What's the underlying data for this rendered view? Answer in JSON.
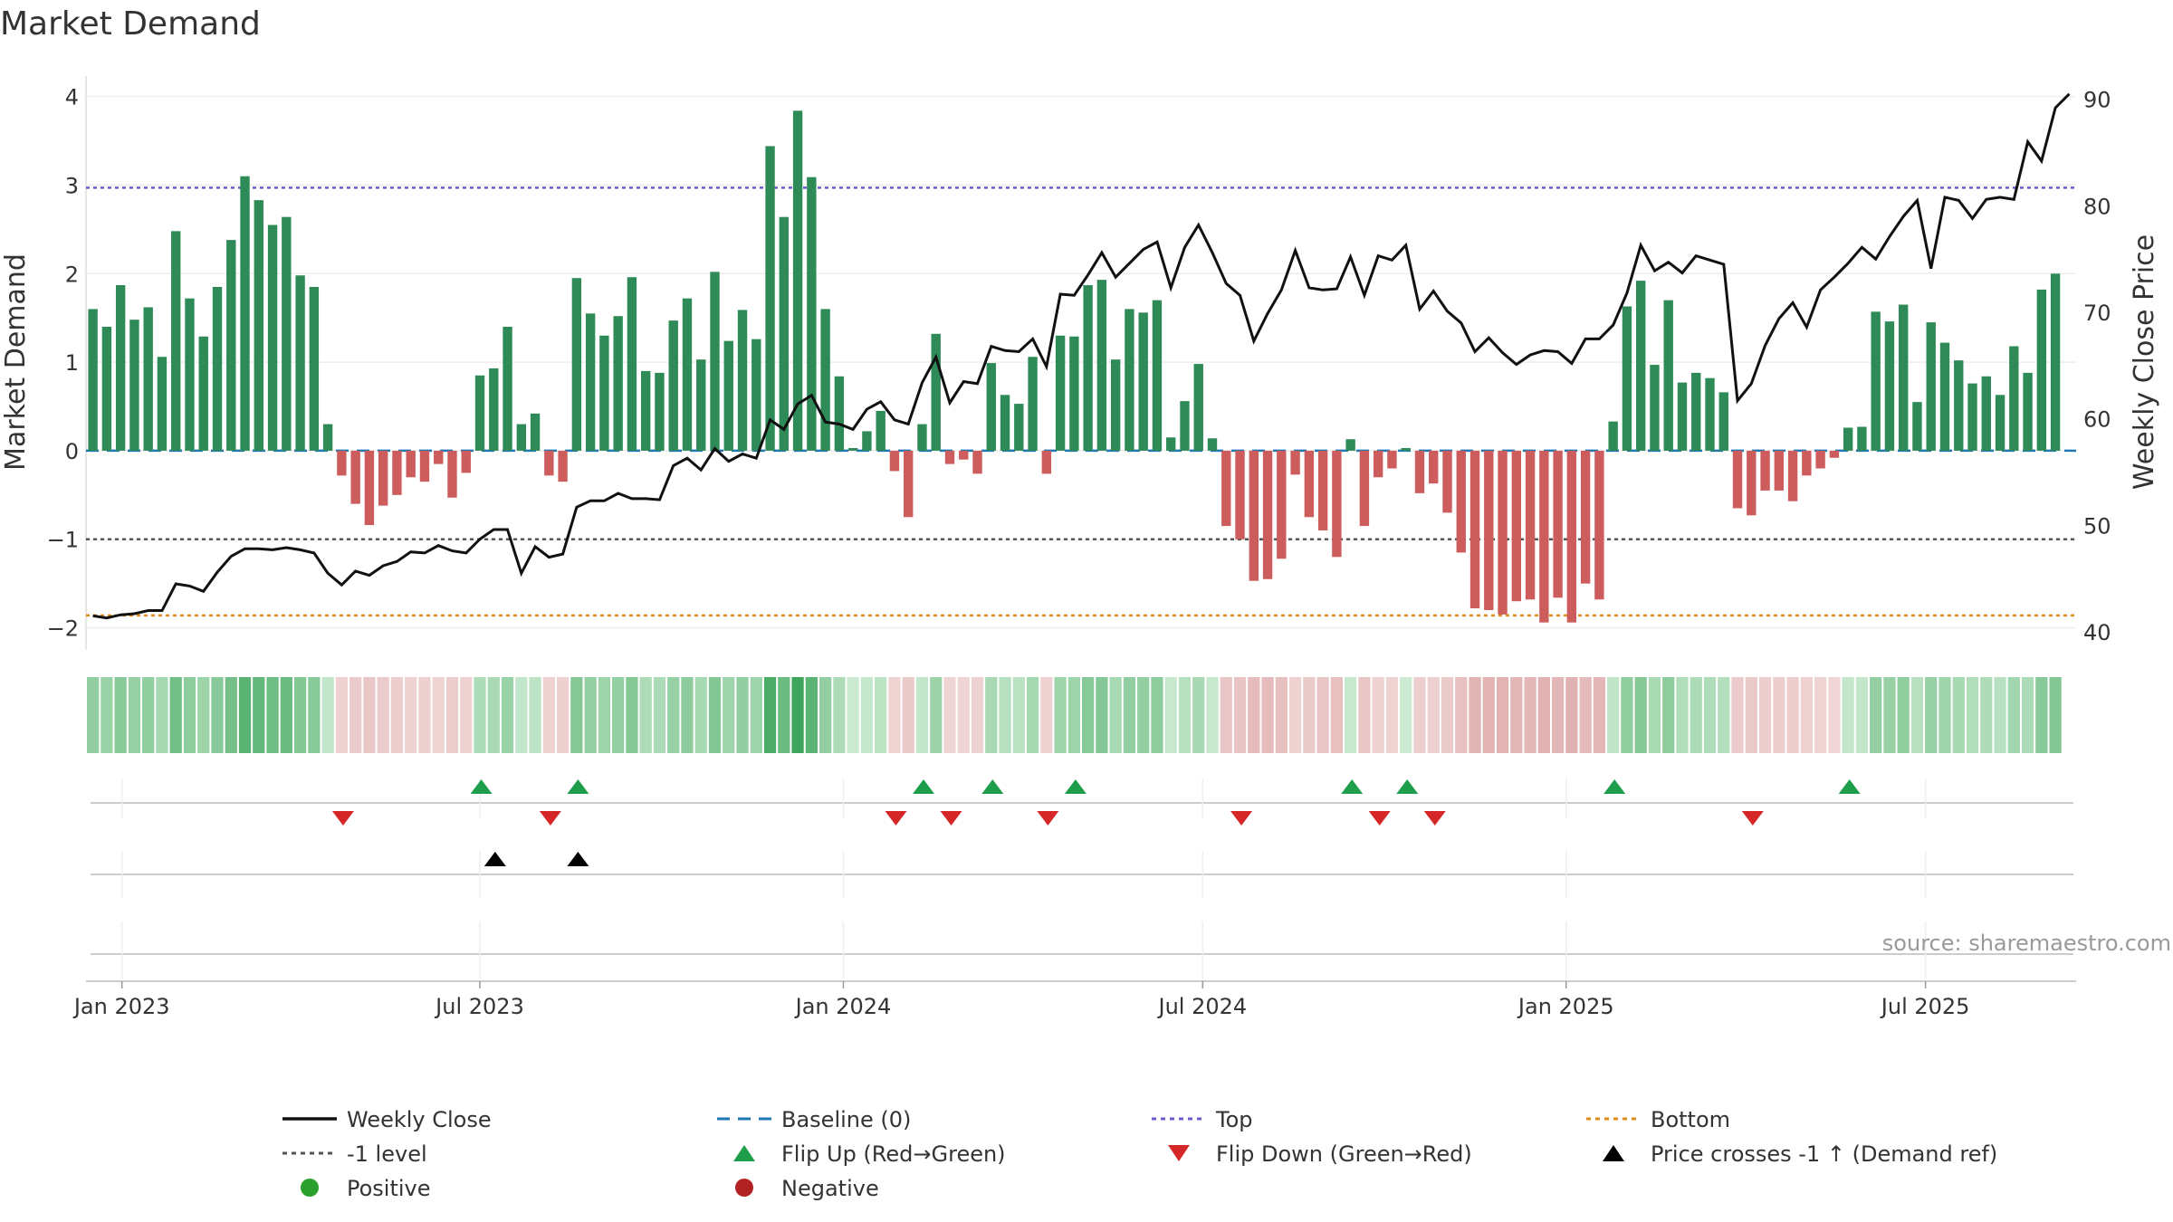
{
  "title": "Market Demand",
  "source": "source: sharemaestro.com",
  "colors": {
    "positive_bar": "#2e8b57",
    "negative_bar": "#cd5c5c",
    "weekly_close": "#111111",
    "baseline": "#1f77b4",
    "top": "#6a5acd",
    "minus_one": "#555555",
    "bottom": "#e08b1a",
    "flip_up": "#1e9e4a",
    "flip_down": "#d62728",
    "cross": "#000000",
    "positive_dot": "#2ca02c",
    "negative_dot": "#b22222"
  },
  "chart_data": {
    "type": "bar+line",
    "start_date": "2022-12-26",
    "weeks": 144,
    "xlabel": "",
    "ylabel_left": "Market Demand",
    "ylabel_right": "Weekly Close Price",
    "ylim_left": [
      -2.25,
      4.15
    ],
    "ylim_right": [
      38.3,
      91.5
    ],
    "yticks_left": [
      -2,
      -1,
      0,
      1,
      2,
      3,
      4
    ],
    "ytick_labels_left": [
      "−2",
      "−1",
      "0",
      "1",
      "2",
      "3",
      "4"
    ],
    "yticks_right": [
      40,
      50,
      60,
      70,
      80,
      90
    ],
    "ytick_labels_right": [
      "40",
      "50",
      "60",
      "70",
      "80",
      "90"
    ],
    "x_ticks": [
      {
        "label": "Jan 2023",
        "week": 2.1
      },
      {
        "label": "Jul 2023",
        "week": 28.0
      },
      {
        "label": "Jan 2024",
        "week": 54.3
      },
      {
        "label": "Jul 2024",
        "week": 80.3
      },
      {
        "label": "Jan 2025",
        "week": 106.6
      },
      {
        "label": "Jul 2025",
        "week": 132.6
      }
    ],
    "reference_lines": {
      "baseline": 0,
      "top": 2.97,
      "minus_one": -1,
      "bottom": -1.86
    },
    "demand": [
      1.6,
      1.4,
      1.87,
      1.48,
      1.62,
      1.06,
      2.48,
      1.72,
      1.29,
      1.85,
      2.38,
      3.1,
      2.83,
      2.55,
      2.64,
      1.98,
      1.85,
      0.3,
      -0.28,
      -0.6,
      -0.84,
      -0.62,
      -0.5,
      -0.3,
      -0.35,
      -0.15,
      -0.53,
      -0.25,
      0.85,
      0.93,
      1.4,
      0.3,
      0.42,
      -0.28,
      -0.35,
      1.95,
      1.55,
      1.3,
      1.52,
      1.96,
      0.9,
      0.88,
      1.47,
      1.72,
      1.03,
      2.02,
      1.24,
      1.59,
      1.26,
      3.44,
      2.64,
      3.84,
      3.09,
      1.6,
      0.84,
      0.03,
      0.22,
      0.45,
      -0.23,
      -0.75,
      0.3,
      1.32,
      -0.15,
      -0.1,
      -0.26,
      0.99,
      0.63,
      0.53,
      1.06,
      -0.26,
      1.3,
      1.29,
      1.87,
      1.93,
      1.03,
      1.6,
      1.56,
      1.7,
      0.15,
      0.56,
      0.98,
      0.14,
      -0.85,
      -1.0,
      -1.47,
      -1.45,
      -1.22,
      -0.27,
      -0.75,
      -0.9,
      -1.2,
      0.13,
      -0.85,
      -0.3,
      -0.2,
      0.03,
      -0.48,
      -0.37,
      -0.7,
      -1.15,
      -1.78,
      -1.8,
      -1.85,
      -1.7,
      -1.68,
      -1.94,
      -1.66,
      -1.94,
      -1.5,
      -1.68,
      0.33,
      1.63,
      1.92,
      0.97,
      1.7,
      0.77,
      0.88,
      0.82,
      0.66,
      -0.65,
      -0.73,
      -0.45,
      -0.45,
      -0.57,
      -0.28,
      -0.2,
      -0.08,
      0.26,
      0.27,
      1.57,
      1.46,
      1.65,
      0.55,
      1.45,
      1.22,
      1.02,
      0.76,
      0.84,
      0.63,
      1.18,
      0.88,
      1.82,
      2.0
    ],
    "weekly_close": [
      41.5,
      41.3,
      41.6,
      41.7,
      42.0,
      42.0,
      44.5,
      44.3,
      43.8,
      45.6,
      47.1,
      47.8,
      47.8,
      47.7,
      47.9,
      47.7,
      47.4,
      45.5,
      44.4,
      45.7,
      45.3,
      46.2,
      46.6,
      47.5,
      47.4,
      48.1,
      47.6,
      47.4,
      48.7,
      49.6,
      49.6,
      45.5,
      48.0,
      47.0,
      47.3,
      51.7,
      52.3,
      52.3,
      53.0,
      52.5,
      52.5,
      52.4,
      55.6,
      56.3,
      55.2,
      57.2,
      56.0,
      56.7,
      56.3,
      59.9,
      59.0,
      61.4,
      62.2,
      59.7,
      59.5,
      59.0,
      60.9,
      61.6,
      59.9,
      59.5,
      63.4,
      65.8,
      61.5,
      63.5,
      63.3,
      66.8,
      66.4,
      66.3,
      67.5,
      64.9,
      71.7,
      71.6,
      73.5,
      75.6,
      73.3,
      74.6,
      75.9,
      76.6,
      72.3,
      76.1,
      78.2,
      75.6,
      72.7,
      71.6,
      67.3,
      69.9,
      72.1,
      75.8,
      72.3,
      72.1,
      72.2,
      75.2,
      71.6,
      75.3,
      74.9,
      76.3,
      70.3,
      72.0,
      70.1,
      69.0,
      66.3,
      67.6,
      66.2,
      65.1,
      66.0,
      66.4,
      66.3,
      65.2,
      67.5,
      67.5,
      68.8,
      71.8,
      76.3,
      73.9,
      74.7,
      73.7,
      75.3,
      74.9,
      74.5,
      61.7,
      63.3,
      66.9,
      69.4,
      70.9,
      68.6,
      72.1,
      73.3,
      74.6,
      76.1,
      75.0,
      77.1,
      79.0,
      80.5,
      74.1,
      80.8,
      80.5,
      78.8,
      80.6,
      80.8,
      80.6,
      86.0,
      84.2,
      89.2,
      90.5
    ],
    "heat_strip": {
      "description": "per-week color tile mirroring demand sign and magnitude"
    },
    "flip_up_weeks": [
      28.1,
      35.1,
      60.1,
      65.1,
      71.1,
      91.1,
      95.1,
      110.1,
      127.1
    ],
    "flip_down_weeks": [
      18.1,
      33.1,
      58.1,
      62.1,
      69.1,
      83.1,
      93.1,
      97.1,
      120.1
    ],
    "price_cross_weeks": [
      29.1,
      35.1
    ]
  },
  "legend": {
    "items": [
      {
        "label": "Weekly Close",
        "symbol": "line-solid",
        "color_key": "weekly_close"
      },
      {
        "label": "Baseline (0)",
        "symbol": "line-dash",
        "color_key": "baseline"
      },
      {
        "label": "Top",
        "symbol": "line-dot",
        "color_key": "top"
      },
      {
        "label": "Bottom",
        "symbol": "line-dot",
        "color_key": "bottom"
      },
      {
        "label": "-1 level",
        "symbol": "line-dot",
        "color_key": "minus_one"
      },
      {
        "label": "Flip Up (Red→Green)",
        "symbol": "tri-up",
        "color_key": "flip_up"
      },
      {
        "label": "Flip Down (Green→Red)",
        "symbol": "tri-down",
        "color_key": "flip_down"
      },
      {
        "label": "Price crosses -1 ↑ (Demand ref)",
        "symbol": "tri-up",
        "color_key": "cross"
      },
      {
        "label": "Positive",
        "symbol": "dot",
        "color_key": "positive_dot"
      },
      {
        "label": "Negative",
        "symbol": "dot",
        "color_key": "negative_dot"
      }
    ]
  }
}
